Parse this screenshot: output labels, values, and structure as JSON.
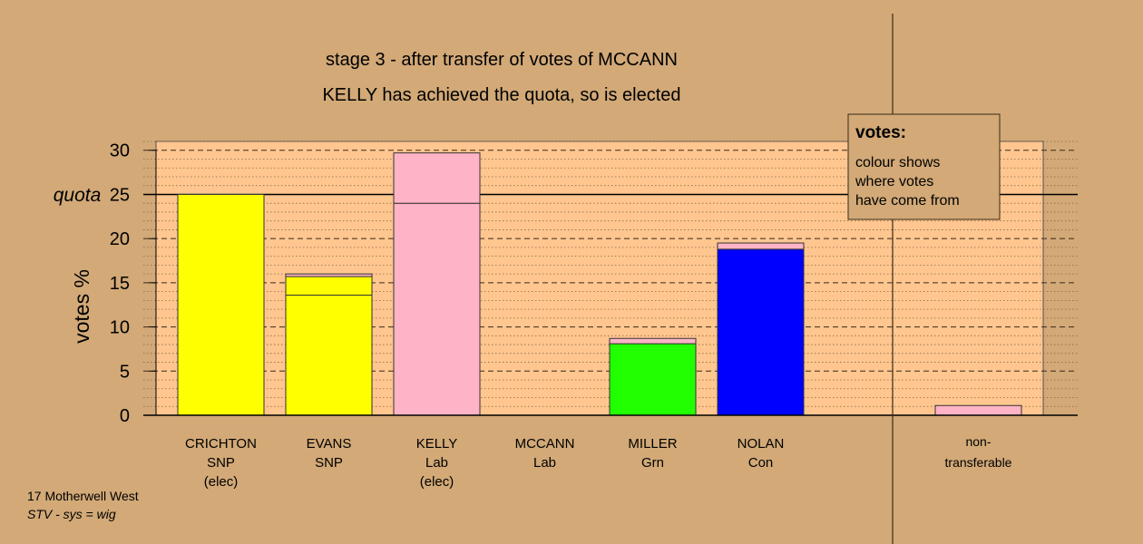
{
  "chart_data": {
    "type": "bar",
    "title": "stage 3 - after transfer of votes of MCCANN",
    "subtitle": "KELLY has achieved the quota, so is elected",
    "ylabel": "votes %",
    "ylim": [
      0,
      31
    ],
    "yticks": [
      0,
      5,
      10,
      15,
      20,
      25,
      30
    ],
    "quota": 25,
    "quota_label": "quota",
    "stacked": true,
    "candidates": [
      {
        "name": "CRICHTON",
        "party": "SNP",
        "status": "(elec)",
        "segments": [
          {
            "value": 25.0,
            "color": "#ffff00"
          }
        ]
      },
      {
        "name": "EVANS",
        "party": "SNP",
        "status": "",
        "segments": [
          {
            "value": 13.6,
            "color": "#ffff00"
          },
          {
            "value": 2.1,
            "color": "#ffff00"
          },
          {
            "value": 0.3,
            "color": "#ffb3c6"
          }
        ]
      },
      {
        "name": "KELLY",
        "party": "Lab",
        "status": "(elec)",
        "segments": [
          {
            "value": 24.0,
            "color": "#ffb3c6"
          },
          {
            "value": 5.7,
            "color": "#ffb3c6"
          }
        ]
      },
      {
        "name": "MCCANN",
        "party": "Lab",
        "status": "",
        "segments": []
      },
      {
        "name": "MILLER",
        "party": "Grn",
        "status": "",
        "segments": [
          {
            "value": 8.1,
            "color": "#22ff00"
          },
          {
            "value": 0.6,
            "color": "#ffb3c6"
          }
        ]
      },
      {
        "name": "NOLAN",
        "party": "Con",
        "status": "",
        "segments": [
          {
            "value": 18.8,
            "color": "#0000ff"
          },
          {
            "value": 0.7,
            "color": "#ffb3c6"
          }
        ]
      }
    ],
    "nontransferable": {
      "label_line1": "non-",
      "label_line2": "transferable",
      "segments": [
        {
          "value": 1.1,
          "color": "#ffb3c6"
        }
      ]
    },
    "legend": {
      "heading": "votes:",
      "lines": [
        "colour shows",
        "where votes",
        "have come from"
      ],
      "placement": "top-right"
    },
    "grid": true
  },
  "footer": {
    "constituency": "17 Motherwell West",
    "system": "STV - sys = wig"
  },
  "colors": {
    "background": "#d2a977",
    "plot_area": "#ffc68f",
    "legend_fill": "#d2a977"
  }
}
